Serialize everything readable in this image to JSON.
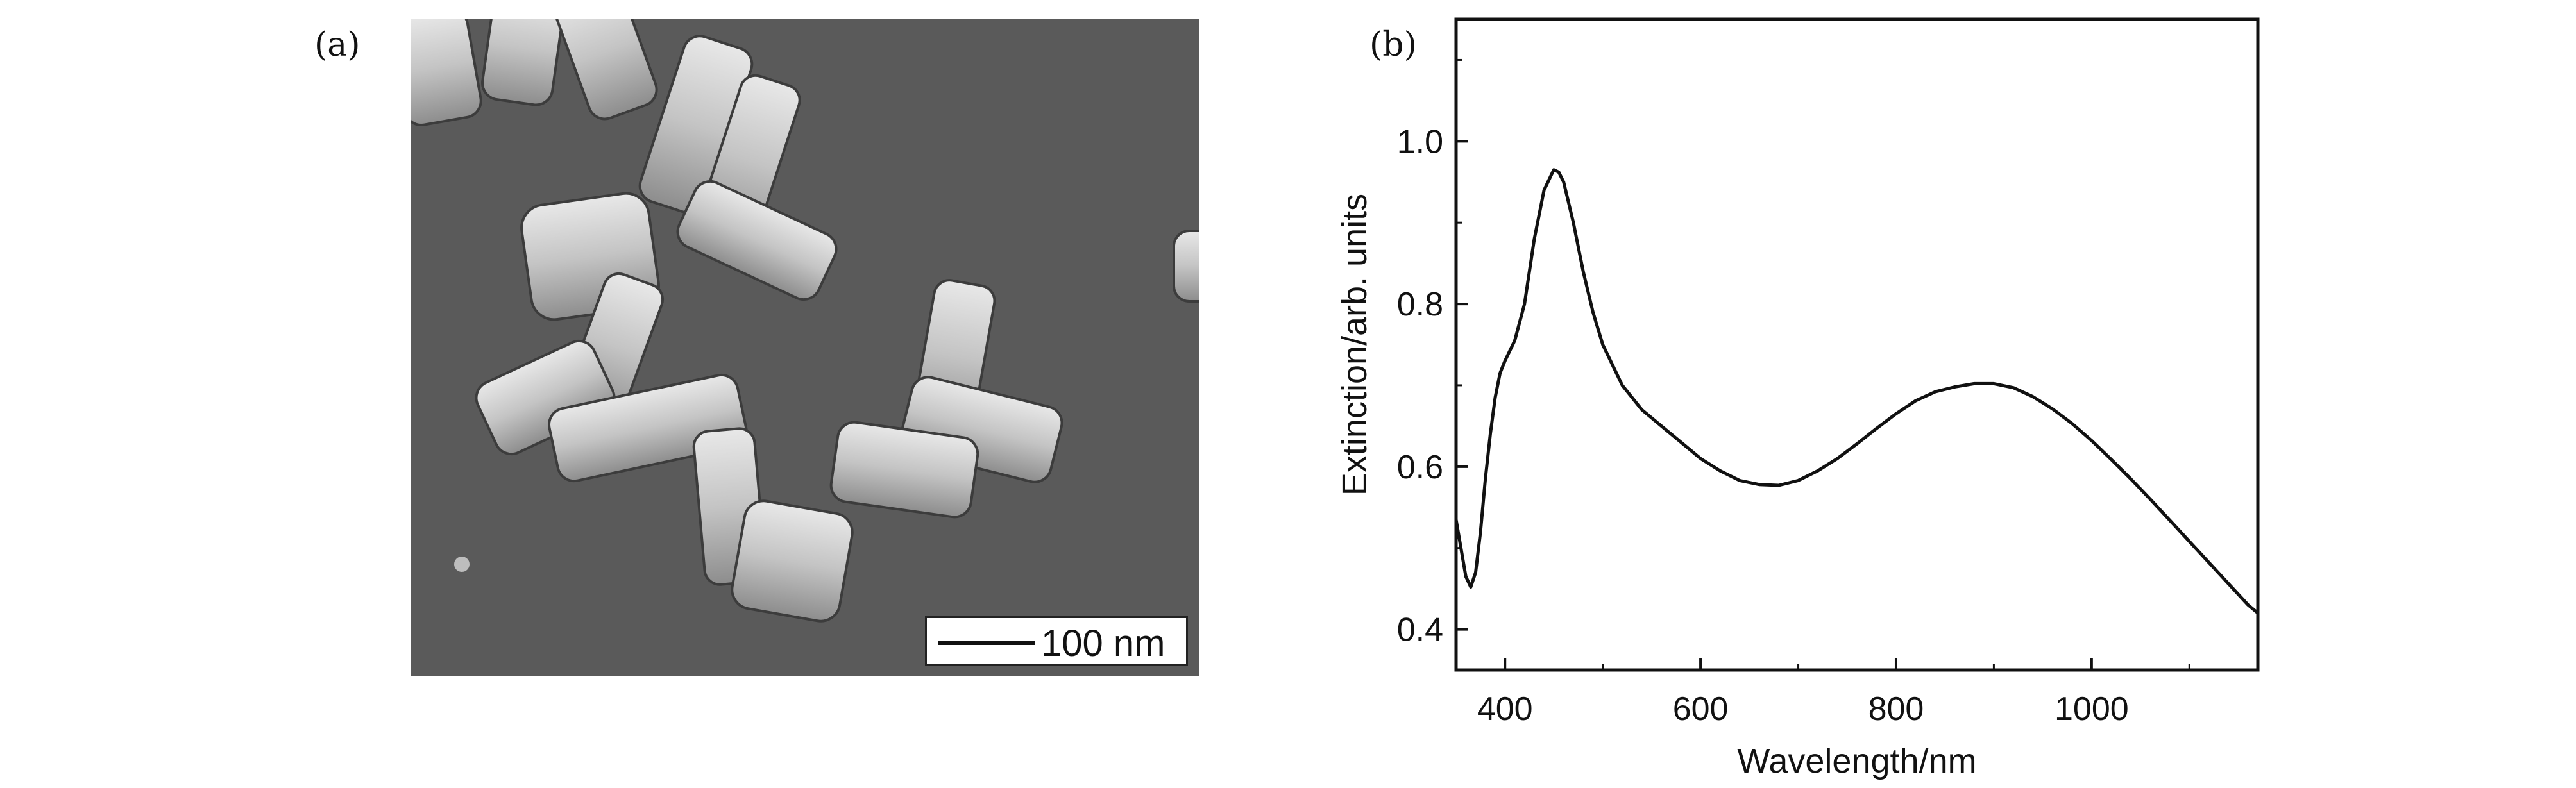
{
  "figure": {
    "panel_a_label": "(a)",
    "panel_b_label": "(b)",
    "scale_bar_label": "100 nm"
  },
  "chart_data": {
    "type": "line",
    "xlabel": "Wavelength/nm",
    "ylabel": "Extinction/arb. units",
    "xlim": [
      350,
      1170
    ],
    "ylim": [
      0.35,
      1.15
    ],
    "xticks": [
      400,
      600,
      800,
      1000
    ],
    "yticks": [
      0.4,
      0.6,
      0.8,
      1.0
    ],
    "xtick_labels": [
      "400",
      "600",
      "800",
      "1000"
    ],
    "ytick_labels": [
      "0.4",
      "0.6",
      "0.8",
      "1.0"
    ],
    "grid": false,
    "series": [
      {
        "color": "#111111",
        "x": [
          350,
          355,
          360,
          365,
          370,
          375,
          380,
          385,
          390,
          395,
          400,
          410,
          420,
          430,
          440,
          450,
          455,
          460,
          470,
          480,
          490,
          500,
          520,
          540,
          560,
          580,
          600,
          620,
          640,
          660,
          680,
          700,
          720,
          740,
          760,
          780,
          800,
          820,
          840,
          860,
          880,
          900,
          920,
          940,
          960,
          980,
          1000,
          1020,
          1040,
          1060,
          1080,
          1100,
          1120,
          1140,
          1160,
          1170
        ],
        "y": [
          0.535,
          0.5,
          0.465,
          0.452,
          0.47,
          0.52,
          0.585,
          0.64,
          0.685,
          0.715,
          0.73,
          0.755,
          0.8,
          0.88,
          0.94,
          0.965,
          0.962,
          0.95,
          0.9,
          0.84,
          0.79,
          0.75,
          0.7,
          0.67,
          0.65,
          0.63,
          0.61,
          0.595,
          0.583,
          0.578,
          0.577,
          0.583,
          0.595,
          0.61,
          0.628,
          0.647,
          0.665,
          0.681,
          0.692,
          0.698,
          0.702,
          0.702,
          0.697,
          0.686,
          0.671,
          0.653,
          0.632,
          0.609,
          0.585,
          0.56,
          0.534,
          0.508,
          0.482,
          0.456,
          0.43,
          0.42
        ]
      }
    ]
  }
}
